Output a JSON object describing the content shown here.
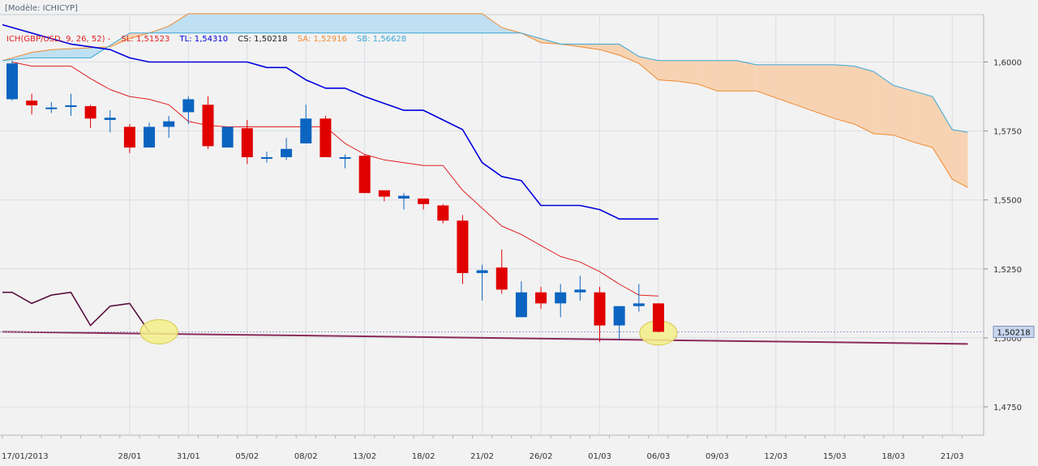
{
  "header": {
    "model_label": "[Modèle: ICHICYP]",
    "indicator": "ICH(GBP/USD, 9, 26, 52)  -",
    "sl": "SL: 1,51523",
    "tl": "TL: 1,54310",
    "cs": "CS: 1,50218",
    "sa": "SA: 1,52916",
    "sb": "SB: 1,56628"
  },
  "colors": {
    "background": "#f2f2f2",
    "grid": "#d9dde3",
    "bull_candle": "#0b64c0",
    "bear_candle": "#e00000",
    "tenkan": "#e02020",
    "kijun": "#0000dd",
    "senkou_a": "#f08a30",
    "senkou_b": "#3aa7d8",
    "cloud_bear": "#f7d3b3",
    "cloud_bull": "#bfe0f2",
    "chikou": "#5a1040",
    "lower_line": "#8a2a5a",
    "highlight": "#f5f08a",
    "price_tag": "#c9d5ee"
  },
  "chart_data": {
    "type": "candlestick",
    "symbol": "GBP/USD",
    "ylim": [
      1.4625,
      1.6175
    ],
    "y_ticks": [
      "1,4750",
      "1,5000",
      "1,5250",
      "1,5500",
      "1,5750",
      "1,6000"
    ],
    "y_tick_values": [
      1.475,
      1.5,
      1.525,
      1.55,
      1.575,
      1.6
    ],
    "x_labels": [
      {
        "label": "17/01/2013",
        "slot": -1
      },
      {
        "label": "28/01",
        "slot": 6
      },
      {
        "label": "31/01",
        "slot": 9
      },
      {
        "label": "05/02",
        "slot": 12
      },
      {
        "label": "08/02",
        "slot": 15
      },
      {
        "label": "13/02",
        "slot": 18
      },
      {
        "label": "18/02",
        "slot": 21
      },
      {
        "label": "21/02",
        "slot": 24
      },
      {
        "label": "26/02",
        "slot": 27
      },
      {
        "label": "01/03",
        "slot": 30
      },
      {
        "label": "06/03",
        "slot": 33
      },
      {
        "label": "09/03",
        "slot": 36
      },
      {
        "label": "12/03",
        "slot": 39
      },
      {
        "label": "15/03",
        "slot": 42
      },
      {
        "label": "18/03",
        "slot": 45
      },
      {
        "label": "21/03",
        "slot": 48
      }
    ],
    "candles": [
      {
        "slot": 0,
        "o": 1.5865,
        "h": 1.6005,
        "l": 1.586,
        "c": 1.5995
      },
      {
        "slot": 1,
        "o": 1.586,
        "h": 1.5885,
        "l": 1.581,
        "c": 1.5843
      },
      {
        "slot": 2,
        "o": 1.583,
        "h": 1.5855,
        "l": 1.5815,
        "c": 1.5835
      },
      {
        "slot": 3,
        "o": 1.5837,
        "h": 1.5885,
        "l": 1.5805,
        "c": 1.5843
      },
      {
        "slot": 4,
        "o": 1.584,
        "h": 1.5845,
        "l": 1.576,
        "c": 1.5795
      },
      {
        "slot": 5,
        "o": 1.579,
        "h": 1.5825,
        "l": 1.5745,
        "c": 1.5798
      },
      {
        "slot": 6,
        "o": 1.5765,
        "h": 1.5775,
        "l": 1.567,
        "c": 1.569
      },
      {
        "slot": 7,
        "o": 1.569,
        "h": 1.578,
        "l": 1.569,
        "c": 1.5765
      },
      {
        "slot": 8,
        "o": 1.5765,
        "h": 1.5805,
        "l": 1.5725,
        "c": 1.5785
      },
      {
        "slot": 9,
        "o": 1.5818,
        "h": 1.5875,
        "l": 1.5775,
        "c": 1.5865
      },
      {
        "slot": 10,
        "o": 1.5845,
        "h": 1.5875,
        "l": 1.5685,
        "c": 1.5695
      },
      {
        "slot": 11,
        "o": 1.569,
        "h": 1.5765,
        "l": 1.569,
        "c": 1.5765
      },
      {
        "slot": 12,
        "o": 1.576,
        "h": 1.579,
        "l": 1.563,
        "c": 1.5655
      },
      {
        "slot": 13,
        "o": 1.5655,
        "h": 1.5675,
        "l": 1.5635,
        "c": 1.5655
      },
      {
        "slot": 14,
        "o": 1.5655,
        "h": 1.5725,
        "l": 1.5645,
        "c": 1.5685
      },
      {
        "slot": 15,
        "o": 1.5705,
        "h": 1.5845,
        "l": 1.5705,
        "c": 1.5795
      },
      {
        "slot": 16,
        "o": 1.5795,
        "h": 1.5805,
        "l": 1.5655,
        "c": 1.5655
      },
      {
        "slot": 17,
        "o": 1.5655,
        "h": 1.5665,
        "l": 1.5615,
        "c": 1.5655
      },
      {
        "slot": 18,
        "o": 1.566,
        "h": 1.5665,
        "l": 1.5525,
        "c": 1.5525
      },
      {
        "slot": 19,
        "o": 1.5535,
        "h": 1.5535,
        "l": 1.5495,
        "c": 1.5512
      },
      {
        "slot": 20,
        "o": 1.5505,
        "h": 1.5525,
        "l": 1.5465,
        "c": 1.5515
      },
      {
        "slot": 21,
        "o": 1.5505,
        "h": 1.5505,
        "l": 1.5465,
        "c": 1.5485
      },
      {
        "slot": 22,
        "o": 1.548,
        "h": 1.5485,
        "l": 1.5415,
        "c": 1.5425
      },
      {
        "slot": 23,
        "o": 1.5425,
        "h": 1.5445,
        "l": 1.5195,
        "c": 1.5235
      },
      {
        "slot": 24,
        "o": 1.5235,
        "h": 1.5265,
        "l": 1.5135,
        "c": 1.5245
      },
      {
        "slot": 25,
        "o": 1.5255,
        "h": 1.532,
        "l": 1.516,
        "c": 1.5175
      },
      {
        "slot": 26,
        "o": 1.5075,
        "h": 1.5205,
        "l": 1.5075,
        "c": 1.5165
      },
      {
        "slot": 27,
        "o": 1.5165,
        "h": 1.5185,
        "l": 1.5105,
        "c": 1.5125
      },
      {
        "slot": 28,
        "o": 1.5125,
        "h": 1.5195,
        "l": 1.5075,
        "c": 1.5165
      },
      {
        "slot": 29,
        "o": 1.5165,
        "h": 1.5225,
        "l": 1.5135,
        "c": 1.5175
      },
      {
        "slot": 30,
        "o": 1.5165,
        "h": 1.5185,
        "l": 1.4985,
        "c": 1.5045
      },
      {
        "slot": 31,
        "o": 1.5045,
        "h": 1.5115,
        "l": 1.4995,
        "c": 1.5115
      },
      {
        "slot": 32,
        "o": 1.5115,
        "h": 1.5195,
        "l": 1.5095,
        "c": 1.5125
      },
      {
        "slot": 33,
        "o": 1.5125,
        "h": 1.5125,
        "l": 1.502,
        "c": 1.5022
      }
    ],
    "tenkan_sen": [
      {
        "slot": 0,
        "y": 1.6
      },
      {
        "slot": 1,
        "y": 1.5985
      },
      {
        "slot": 3,
        "y": 1.5985
      },
      {
        "slot": 4,
        "y": 1.594
      },
      {
        "slot": 5,
        "y": 1.59
      },
      {
        "slot": 6,
        "y": 1.5875
      },
      {
        "slot": 7,
        "y": 1.5865
      },
      {
        "slot": 8,
        "y": 1.5845
      },
      {
        "slot": 9,
        "y": 1.5785
      },
      {
        "slot": 10,
        "y": 1.577
      },
      {
        "slot": 11,
        "y": 1.5765
      },
      {
        "slot": 16,
        "y": 1.5765
      },
      {
        "slot": 17,
        "y": 1.5705
      },
      {
        "slot": 18,
        "y": 1.5665
      },
      {
        "slot": 19,
        "y": 1.5645
      },
      {
        "slot": 20,
        "y": 1.5635
      },
      {
        "slot": 21,
        "y": 1.5625
      },
      {
        "slot": 22,
        "y": 1.5625
      },
      {
        "slot": 23,
        "y": 1.5535
      },
      {
        "slot": 24,
        "y": 1.547
      },
      {
        "slot": 25,
        "y": 1.5405
      },
      {
        "slot": 26,
        "y": 1.5375
      },
      {
        "slot": 27,
        "y": 1.5335
      },
      {
        "slot": 28,
        "y": 1.5295
      },
      {
        "slot": 29,
        "y": 1.5275
      },
      {
        "slot": 30,
        "y": 1.524
      },
      {
        "slot": 31,
        "y": 1.5195
      },
      {
        "slot": 32,
        "y": 1.5155
      },
      {
        "slot": 33,
        "y": 1.5152
      }
    ],
    "kijun_sen": [
      {
        "slot": -0.5,
        "y": 1.6135
      },
      {
        "slot": 2,
        "y": 1.6085
      },
      {
        "slot": 3,
        "y": 1.6065
      },
      {
        "slot": 5,
        "y": 1.6045
      },
      {
        "slot": 6,
        "y": 1.6015
      },
      {
        "slot": 7,
        "y": 1.6
      },
      {
        "slot": 12,
        "y": 1.6
      },
      {
        "slot": 13,
        "y": 1.598
      },
      {
        "slot": 14,
        "y": 1.598
      },
      {
        "slot": 15,
        "y": 1.5935
      },
      {
        "slot": 16,
        "y": 1.5905
      },
      {
        "slot": 17,
        "y": 1.5905
      },
      {
        "slot": 18,
        "y": 1.5875
      },
      {
        "slot": 19,
        "y": 1.585
      },
      {
        "slot": 20,
        "y": 1.5825
      },
      {
        "slot": 21,
        "y": 1.5825
      },
      {
        "slot": 22,
        "y": 1.579
      },
      {
        "slot": 23,
        "y": 1.5755
      },
      {
        "slot": 24,
        "y": 1.5635
      },
      {
        "slot": 25,
        "y": 1.5585
      },
      {
        "slot": 26,
        "y": 1.557
      },
      {
        "slot": 27,
        "y": 1.548
      },
      {
        "slot": 28,
        "y": 1.548
      },
      {
        "slot": 29,
        "y": 1.548
      },
      {
        "slot": 30,
        "y": 1.5465
      },
      {
        "slot": 31,
        "y": 1.5431
      },
      {
        "slot": 33,
        "y": 1.5431
      }
    ],
    "senkou_span_a": [
      {
        "slot": -0.5,
        "y": 1.6005
      },
      {
        "slot": 1,
        "y": 1.6035
      },
      {
        "slot": 2,
        "y": 1.6045
      },
      {
        "slot": 5,
        "y": 1.6055
      },
      {
        "slot": 6,
        "y": 1.6085
      },
      {
        "slot": 7,
        "y": 1.6105
      },
      {
        "slot": 8,
        "y": 1.613
      },
      {
        "slot": 9,
        "y": 1.6175
      },
      {
        "slot": 24,
        "y": 1.6175
      },
      {
        "slot": 25,
        "y": 1.6125
      },
      {
        "slot": 26,
        "y": 1.6105
      },
      {
        "slot": 27,
        "y": 1.607
      },
      {
        "slot": 28,
        "y": 1.6065
      },
      {
        "slot": 29,
        "y": 1.6055
      },
      {
        "slot": 30,
        "y": 1.6045
      },
      {
        "slot": 31,
        "y": 1.6025
      },
      {
        "slot": 32,
        "y": 1.5995
      },
      {
        "slot": 33,
        "y": 1.5935
      },
      {
        "slot": 34,
        "y": 1.593
      },
      {
        "slot": 35,
        "y": 1.592
      },
      {
        "slot": 36,
        "y": 1.5895
      },
      {
        "slot": 38,
        "y": 1.5895
      },
      {
        "slot": 39,
        "y": 1.587
      },
      {
        "slot": 40,
        "y": 1.5845
      },
      {
        "slot": 42,
        "y": 1.5795
      },
      {
        "slot": 43,
        "y": 1.5775
      },
      {
        "slot": 44,
        "y": 1.574
      },
      {
        "slot": 45,
        "y": 1.5735
      },
      {
        "slot": 46,
        "y": 1.571
      },
      {
        "slot": 47,
        "y": 1.569
      },
      {
        "slot": 48,
        "y": 1.5575
      },
      {
        "slot": 48.8,
        "y": 1.5545
      }
    ],
    "senkou_span_b": [
      {
        "slot": -0.5,
        "y": 1.6005
      },
      {
        "slot": 1,
        "y": 1.6015
      },
      {
        "slot": 4,
        "y": 1.6015
      },
      {
        "slot": 6,
        "y": 1.6105
      },
      {
        "slot": 8,
        "y": 1.6105
      },
      {
        "slot": 26,
        "y": 1.6105
      },
      {
        "slot": 27,
        "y": 1.6085
      },
      {
        "slot": 28,
        "y": 1.6065
      },
      {
        "slot": 31,
        "y": 1.6065
      },
      {
        "slot": 32,
        "y": 1.602
      },
      {
        "slot": 33,
        "y": 1.6005
      },
      {
        "slot": 37,
        "y": 1.6005
      },
      {
        "slot": 38,
        "y": 1.599
      },
      {
        "slot": 42,
        "y": 1.599
      },
      {
        "slot": 43,
        "y": 1.5985
      },
      {
        "slot": 44,
        "y": 1.5965
      },
      {
        "slot": 45,
        "y": 1.5915
      },
      {
        "slot": 46,
        "y": 1.5895
      },
      {
        "slot": 47,
        "y": 1.5875
      },
      {
        "slot": 48,
        "y": 1.5755
      },
      {
        "slot": 48.8,
        "y": 1.5745
      }
    ],
    "chikou_span": [
      {
        "slot": -0.5,
        "y": 1.5165
      },
      {
        "slot": 0,
        "y": 1.5165
      },
      {
        "slot": 1,
        "y": 1.5125
      },
      {
        "slot": 2,
        "y": 1.5155
      },
      {
        "slot": 3,
        "y": 1.5165
      },
      {
        "slot": 4,
        "y": 1.5045
      },
      {
        "slot": 5,
        "y": 1.5115
      },
      {
        "slot": 6,
        "y": 1.5125
      },
      {
        "slot": 7,
        "y": 1.5022
      }
    ],
    "lower_line": [
      {
        "slot": -0.5,
        "y": 1.5022
      },
      {
        "slot": 48.8,
        "y": 1.4978
      }
    ],
    "current_price": {
      "value": 1.50218,
      "label": "1,50218"
    },
    "highlights": [
      {
        "slot": 7.5,
        "y": 1.5022,
        "note": "chikou crossing"
      },
      {
        "slot": 33,
        "y": 1.5018,
        "note": "last close"
      }
    ]
  }
}
